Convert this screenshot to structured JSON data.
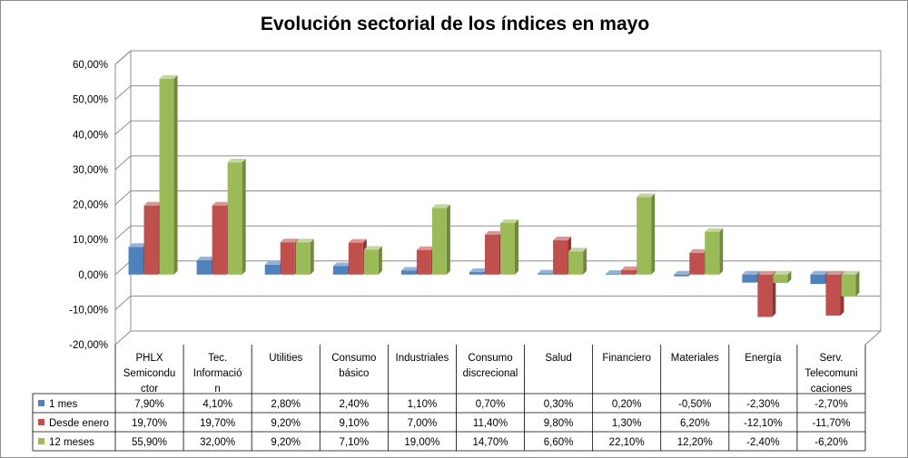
{
  "chart_data": {
    "type": "bar",
    "title": "Evolución sectorial de los índices en mayo",
    "xlabel": "",
    "ylabel": "",
    "ylim": [
      -20,
      60
    ],
    "yticks": [
      "60,00%",
      "50,00%",
      "40,00%",
      "30,00%",
      "20,00%",
      "10,00%",
      "0,00%",
      "-10,00%",
      "-20,00%"
    ],
    "ytick_values": [
      60,
      50,
      40,
      30,
      20,
      10,
      0,
      -10,
      -20
    ],
    "categories": [
      "PHLX Semiconductor",
      "Tec. Información",
      "Utilities",
      "Consumo básico",
      "Industriales",
      "Consumo discrecional",
      "Salud",
      "Financiero",
      "Materiales",
      "Energía",
      "Serv. Telecomunicaciones"
    ],
    "category_lines": [
      [
        "PHLX",
        "Semicondu",
        "ctor"
      ],
      [
        "Tec.",
        "Informació",
        "n"
      ],
      [
        "Utilities"
      ],
      [
        "Consumo",
        "básico"
      ],
      [
        "Industriales"
      ],
      [
        "Consumo",
        "discrecional"
      ],
      [
        "Salud"
      ],
      [
        "Financiero"
      ],
      [
        "Materiales"
      ],
      [
        "Energía"
      ],
      [
        "Serv.",
        "Telecomuni",
        "caciones"
      ]
    ],
    "series": [
      {
        "name": "1 mes",
        "color": "#4f81bd",
        "side": "#385d8a",
        "top": "#95b3d7",
        "values": [
          7.9,
          4.1,
          2.8,
          2.4,
          1.1,
          0.7,
          0.3,
          0.2,
          -0.5,
          -2.3,
          -2.7
        ],
        "labels": [
          "7,90%",
          "4,10%",
          "2,80%",
          "2,40%",
          "1,10%",
          "0,70%",
          "0,30%",
          "0,20%",
          "-0,50%",
          "-2,30%",
          "-2,70%"
        ]
      },
      {
        "name": "Desde enero",
        "color": "#c0504d",
        "side": "#8c3836",
        "top": "#d99694",
        "values": [
          19.7,
          19.7,
          9.2,
          9.1,
          7.0,
          11.4,
          9.8,
          1.3,
          6.2,
          -12.1,
          -11.7
        ],
        "labels": [
          "19,70%",
          "19,70%",
          "9,20%",
          "9,10%",
          "7,00%",
          "11,40%",
          "9,80%",
          "1,30%",
          "6,20%",
          "-12,10%",
          "-11,70%"
        ]
      },
      {
        "name": "12 meses",
        "color": "#9bbb59",
        "side": "#71893f",
        "top": "#c3d69b",
        "values": [
          55.9,
          32.0,
          9.2,
          7.1,
          19.0,
          14.7,
          6.6,
          22.1,
          12.2,
          -2.4,
          -6.2
        ],
        "labels": [
          "55,90%",
          "32,00%",
          "9,20%",
          "7,10%",
          "19,00%",
          "14,70%",
          "6,60%",
          "22,10%",
          "12,20%",
          "-2,40%",
          "-6,20%"
        ]
      }
    ],
    "legend": "data-table-left",
    "grid": true
  }
}
